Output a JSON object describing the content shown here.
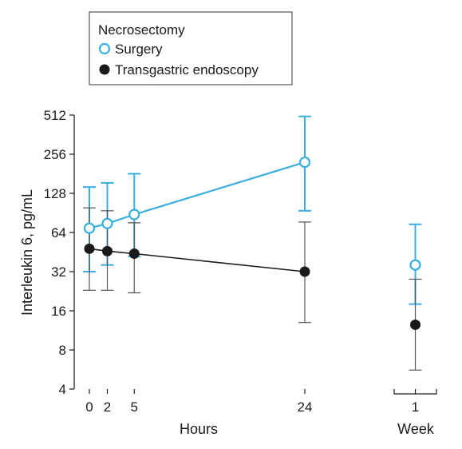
{
  "chart_data": {
    "type": "line",
    "legend": {
      "title": "Necrosectomy",
      "placement": "top-left"
    },
    "ylabel": "Interleukin 6, pg/mL",
    "yscale": "log2",
    "ylim": [
      4,
      512
    ],
    "yticks": [
      4,
      8,
      16,
      32,
      64,
      128,
      256,
      512
    ],
    "panels": [
      {
        "xlabel": "Hours",
        "xticks": [
          0,
          2,
          5,
          24
        ],
        "xlim": [
          -1,
          26
        ]
      },
      {
        "xlabel": "Week",
        "xticks": [
          1
        ],
        "xlim": [
          0.2,
          1.8
        ]
      }
    ],
    "colors": {
      "surgery": "#3aaee0",
      "endoscopy": "#1a1a1a",
      "endoscopy_error": "#555555"
    },
    "series": [
      {
        "name": "Surgery",
        "marker": "open-circle",
        "hours": [
          {
            "x": 0,
            "y": 69,
            "low": 32,
            "high": 143
          },
          {
            "x": 2,
            "y": 75,
            "low": 36,
            "high": 154
          },
          {
            "x": 5,
            "y": 88,
            "low": 42,
            "high": 181
          },
          {
            "x": 24,
            "y": 222,
            "low": 94,
            "high": 500
          }
        ],
        "week": [
          {
            "x": 1,
            "y": 36,
            "low": 18,
            "high": 74
          }
        ]
      },
      {
        "name": "Transgastric endoscopy",
        "marker": "filled-circle",
        "hours": [
          {
            "x": 0,
            "y": 48,
            "low": 23,
            "high": 99
          },
          {
            "x": 2,
            "y": 46,
            "low": 23,
            "high": 94
          },
          {
            "x": 5,
            "y": 44,
            "low": 22,
            "high": 76
          },
          {
            "x": 24,
            "y": 32,
            "low": 13,
            "high": 77
          }
        ],
        "week": [
          {
            "x": 1,
            "y": 12.5,
            "low": 5.6,
            "high": 28
          }
        ]
      }
    ]
  }
}
